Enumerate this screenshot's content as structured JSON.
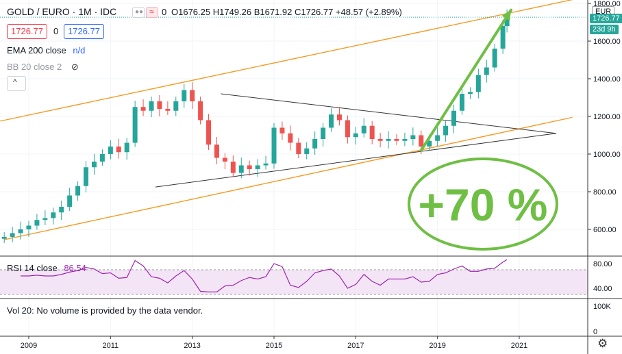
{
  "header": {
    "symbol": "GOLD / EURO · 1M · IDC",
    "status_count": "0",
    "ohlc_text": "O1676.25  H1749.26  B1671.92  C1726.77  +48.57 (+2.89%)",
    "bid_price": "1726.77",
    "ask_price": "1726.77"
  },
  "indicators": {
    "ema_label": "EMA 200 close",
    "ema_value": "n/d",
    "bb_label": "BB 20 close 2",
    "rsi_label": "RSI 14 close",
    "rsi_value": "86.54",
    "vol_label": "Vol 20: No volume is provided by the data vendor."
  },
  "price_axis": {
    "currency": "EUR",
    "last_price_label": "1726.77",
    "countdown": "23d 9h"
  },
  "annotation": {
    "text": "+70 %"
  },
  "colors": {
    "up": "#26a69a",
    "down": "#ef5350",
    "channel": "#f59a23",
    "wedge": "#333333",
    "arrow": "#6fbf44",
    "rsi": "#9c27b0",
    "rsi_band": "#f3e5f5"
  },
  "chart_data": {
    "type": "candlestick",
    "title": "GOLD / EURO · 1M · IDC",
    "xlabel": "",
    "ylabel": "EUR",
    "x_range": [
      2008.3,
      2022.5
    ],
    "ylim": [
      500,
      1800
    ],
    "x_ticks": [
      "2009",
      "2011",
      "2013",
      "2015",
      "2017",
      "2019",
      "2021"
    ],
    "y_ticks": [
      600,
      800,
      1000,
      1200,
      1400,
      1600,
      1800
    ],
    "close_series": [
      [
        2008.4,
        560
      ],
      [
        2008.6,
        580
      ],
      [
        2008.8,
        600
      ],
      [
        2009.0,
        620
      ],
      [
        2009.2,
        650
      ],
      [
        2009.4,
        660
      ],
      [
        2009.6,
        690
      ],
      [
        2009.8,
        720
      ],
      [
        2010.0,
        780
      ],
      [
        2010.2,
        830
      ],
      [
        2010.4,
        930
      ],
      [
        2010.6,
        960
      ],
      [
        2010.8,
        1000
      ],
      [
        2011.0,
        1040
      ],
      [
        2011.2,
        1010
      ],
      [
        2011.4,
        1060
      ],
      [
        2011.6,
        1250
      ],
      [
        2011.8,
        1230
      ],
      [
        2012.0,
        1280
      ],
      [
        2012.2,
        1240
      ],
      [
        2012.4,
        1230
      ],
      [
        2012.6,
        1280
      ],
      [
        2012.8,
        1340
      ],
      [
        2013.0,
        1280
      ],
      [
        2013.2,
        1180
      ],
      [
        2013.4,
        1050
      ],
      [
        2013.6,
        980
      ],
      [
        2013.8,
        960
      ],
      [
        2014.0,
        900
      ],
      [
        2014.2,
        940
      ],
      [
        2014.4,
        920
      ],
      [
        2014.6,
        940
      ],
      [
        2014.8,
        950
      ],
      [
        2015.0,
        1140
      ],
      [
        2015.2,
        1110
      ],
      [
        2015.4,
        1060
      ],
      [
        2015.6,
        1000
      ],
      [
        2015.8,
        1030
      ],
      [
        2016.0,
        1080
      ],
      [
        2016.2,
        1140
      ],
      [
        2016.4,
        1210
      ],
      [
        2016.6,
        1180
      ],
      [
        2016.8,
        1090
      ],
      [
        2017.0,
        1110
      ],
      [
        2017.2,
        1150
      ],
      [
        2017.4,
        1080
      ],
      [
        2017.6,
        1070
      ],
      [
        2017.8,
        1080
      ],
      [
        2018.0,
        1070
      ],
      [
        2018.2,
        1080
      ],
      [
        2018.4,
        1100
      ],
      [
        2018.6,
        1040
      ],
      [
        2018.8,
        1070
      ],
      [
        2019.0,
        1100
      ],
      [
        2019.2,
        1150
      ],
      [
        2019.4,
        1230
      ],
      [
        2019.6,
        1320
      ],
      [
        2019.8,
        1330
      ],
      [
        2020.0,
        1420
      ],
      [
        2020.2,
        1460
      ],
      [
        2020.4,
        1560
      ],
      [
        2020.6,
        1680
      ],
      [
        2020.7,
        1726.77
      ]
    ],
    "channel_upper": [
      [
        2008.3,
        1175
      ],
      [
        2022.3,
        1820
      ]
    ],
    "channel_lower": [
      [
        2008.4,
        545
      ],
      [
        2022.3,
        1195
      ]
    ],
    "triangle": [
      [
        2013.7,
        1320
      ],
      [
        2021.9,
        1110
      ],
      [
        2012.1,
        825
      ]
    ],
    "arrow": {
      "from": [
        2018.6,
        1020
      ],
      "to": [
        2020.8,
        1765
      ]
    },
    "rsi": {
      "ylim": [
        30,
        90
      ],
      "y_ticks": [
        40,
        80
      ],
      "upper_band": 70,
      "lower_band": 30,
      "last": 86.54
    },
    "volume": {
      "y_ticks": [
        "100K",
        "0"
      ]
    }
  }
}
